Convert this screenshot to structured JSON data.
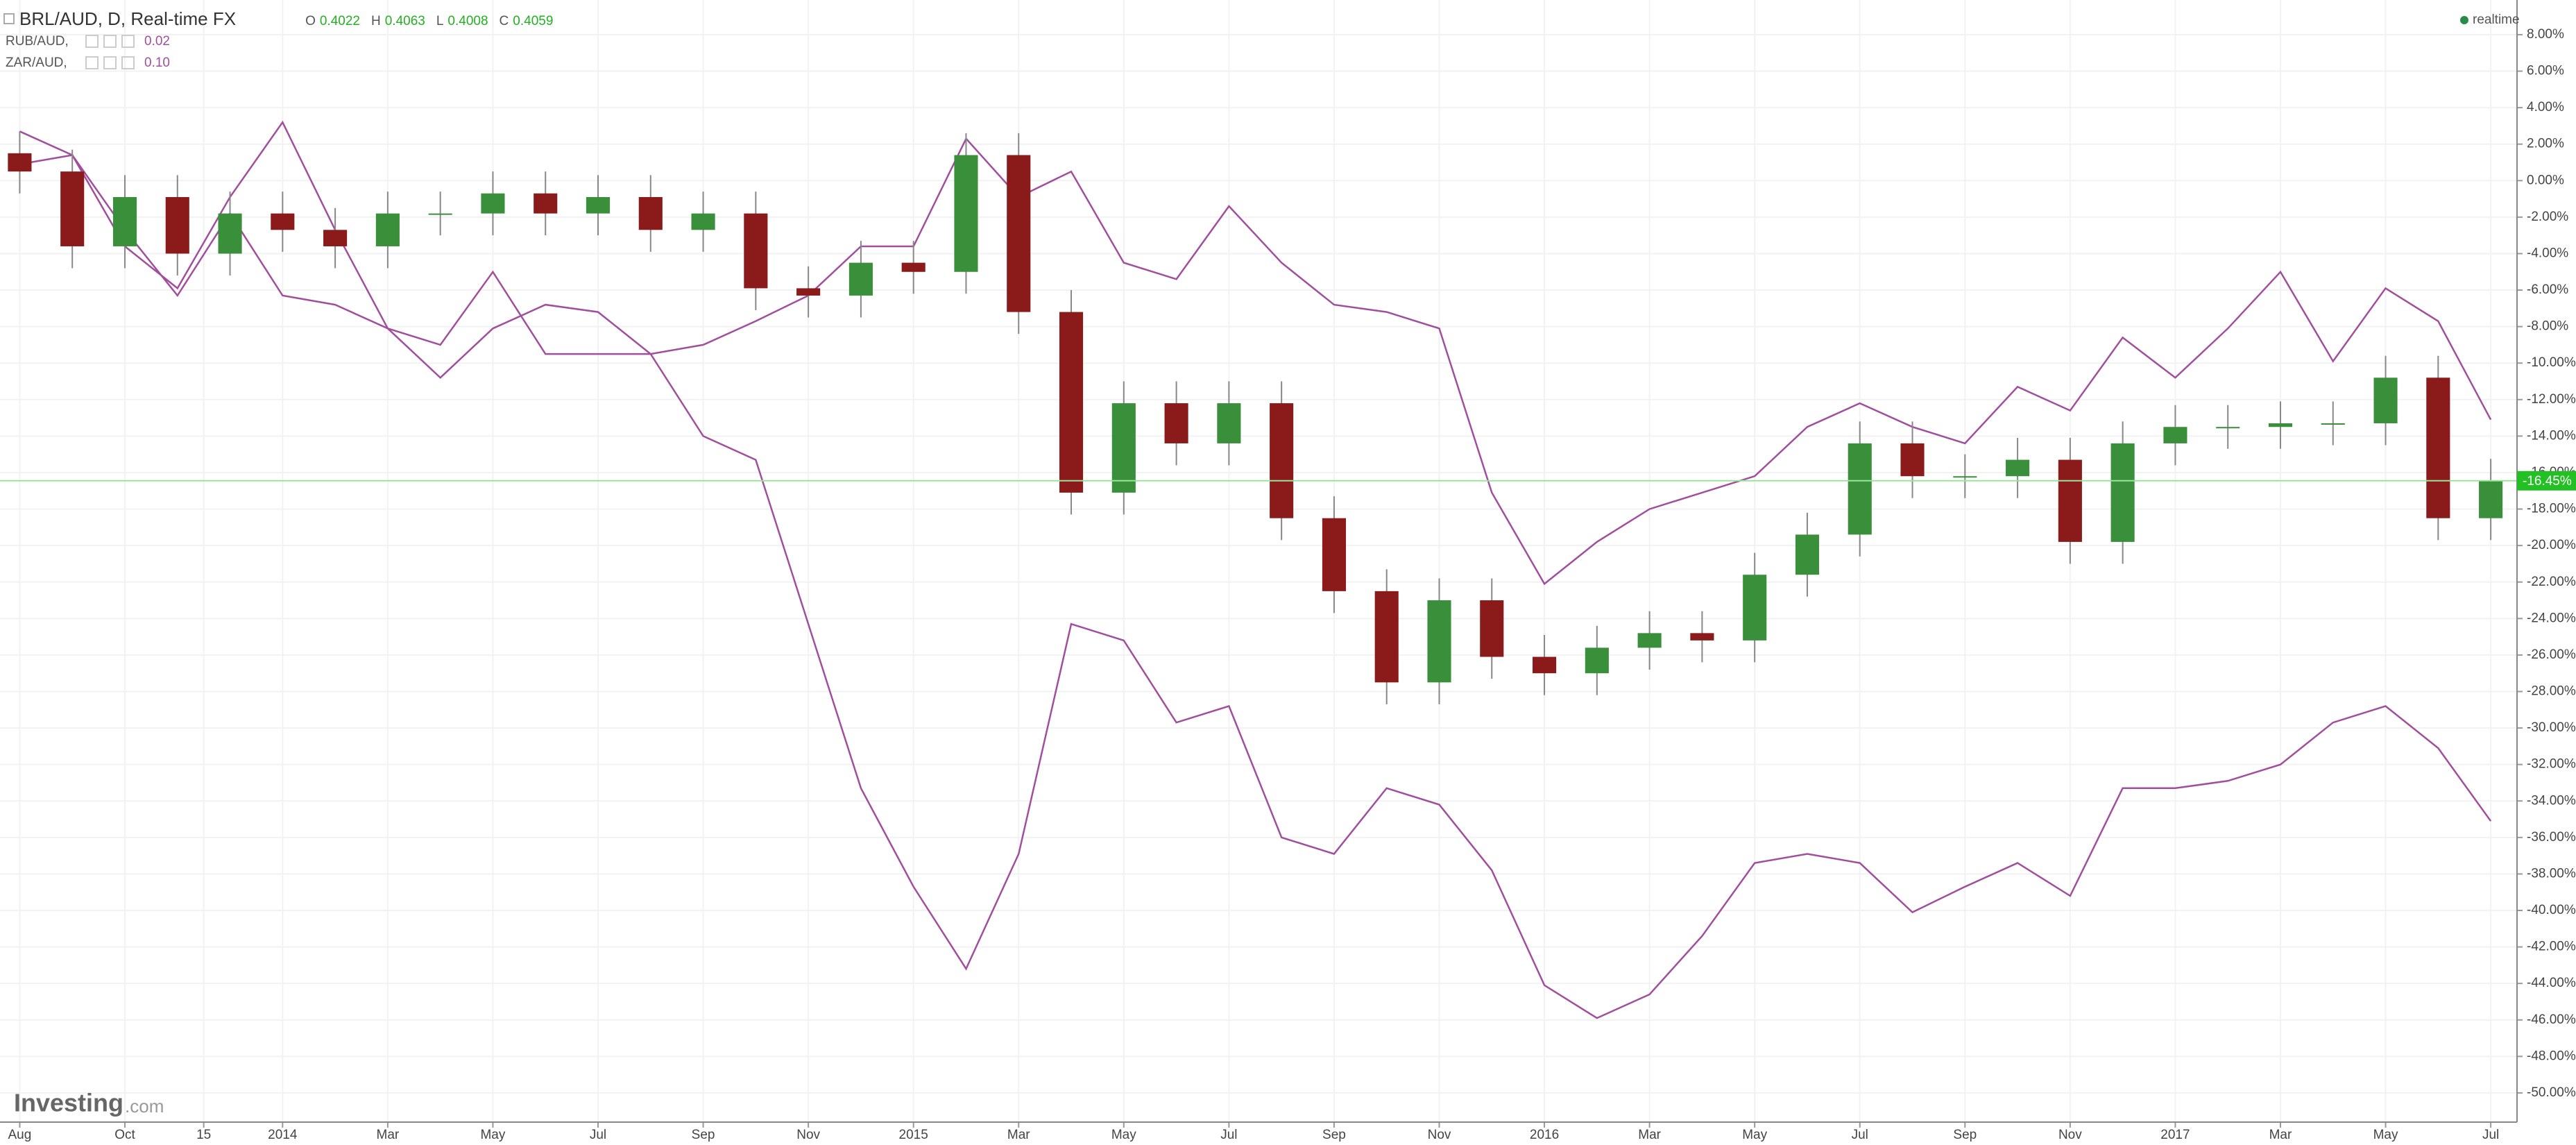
{
  "chart_data": {
    "type": "candlestick",
    "title": "BRL/AUD, D, Real-time FX",
    "ohlc_legend": [
      {
        "label": "O",
        "value": 0.4022
      },
      {
        "label": "H",
        "value": 0.4063
      },
      {
        "label": "L",
        "value": 0.4008
      },
      {
        "label": "C",
        "value": 0.4059
      }
    ],
    "status": "realtime",
    "watermark": "Investing",
    "watermark_suffix": ".com",
    "up_color": "#3a8f3a",
    "down_color": "#8b1a1a",
    "wick_color": "#888888",
    "x": [
      0,
      1,
      2,
      3,
      4,
      5,
      6,
      7,
      8,
      9,
      10,
      11,
      12,
      13,
      14,
      15,
      16,
      17,
      18,
      19,
      20,
      21,
      22,
      23,
      24,
      25,
      26,
      27,
      28,
      29,
      30,
      31,
      32,
      33,
      34,
      35,
      36,
      37,
      38,
      39,
      40,
      41,
      42,
      43,
      44,
      45,
      46,
      47
    ],
    "open": [
      1.5,
      0.5,
      -3.6,
      -0.9,
      -4,
      -1.8,
      -2.7,
      -3.6,
      -1.8,
      -1.8,
      -0.7,
      -1.8,
      -0.9,
      -2.7,
      -1.8,
      -5.9,
      -6.3,
      -4.5,
      -5,
      1.4,
      -7.2,
      -17.1,
      -12.2,
      -14.4,
      -12.2,
      -18.5,
      -22.5,
      -27.5,
      -23,
      -26.1,
      -27,
      -25.6,
      -24.8,
      -25.2,
      -21.6,
      -19.4,
      -14.4,
      -16.2,
      -16.2,
      -15.3,
      -19.8,
      -14.4,
      -13.5,
      -13.5,
      -13.3,
      -13.3,
      -10.8,
      -18.5
    ],
    "high": [
      2.7,
      1.7,
      0.3,
      0.3,
      -0.6,
      -0.6,
      -1.5,
      -0.6,
      -0.6,
      0.5,
      0.5,
      0.3,
      0.3,
      -0.6,
      -0.6,
      -4.7,
      -3.3,
      -3.3,
      2.6,
      2.6,
      -6,
      -11,
      -11,
      -11,
      -11,
      -17.3,
      -21.3,
      -21.8,
      -21.8,
      -24.9,
      -24.4,
      -23.6,
      -23.6,
      -20.4,
      -18.2,
      -13.2,
      -13.2,
      -15,
      -14.1,
      -14.1,
      -13.2,
      -12.3,
      -12.3,
      -12.1,
      -12.1,
      -9.6,
      -9.6,
      -15.25
    ],
    "low": [
      -0.7,
      -4.8,
      -4.8,
      -5.2,
      -5.2,
      -3.9,
      -4.8,
      -4.8,
      -3,
      -3,
      -3,
      -3,
      -3.9,
      -3.9,
      -7.1,
      -7.5,
      -7.5,
      -6.2,
      -6.2,
      -8.4,
      -18.3,
      -18.3,
      -15.6,
      -15.6,
      -19.7,
      -23.7,
      -28.7,
      -28.7,
      -27.3,
      -28.2,
      -28.2,
      -26.8,
      -26.4,
      -26.4,
      -22.8,
      -20.6,
      -17.4,
      -17.4,
      -17.4,
      -21,
      -21,
      -15.6,
      -14.7,
      -14.7,
      -14.5,
      -14.5,
      -19.7,
      -19.7
    ],
    "close": [
      0.5,
      -3.6,
      -0.9,
      -4,
      -1.8,
      -2.7,
      -3.6,
      -1.8,
      -1.8,
      -0.7,
      -1.8,
      -0.9,
      -2.7,
      -1.8,
      -5.9,
      -6.3,
      -4.5,
      -5,
      1.4,
      -7.2,
      -17.1,
      -12.2,
      -14.4,
      -12.2,
      -18.5,
      -22.5,
      -27.5,
      -23,
      -26.1,
      -27,
      -25.6,
      -24.8,
      -25.2,
      -21.6,
      -19.4,
      -14.4,
      -16.2,
      -16.2,
      -15.3,
      -19.8,
      -14.4,
      -13.5,
      -13.5,
      -13.3,
      -13.3,
      -10.8,
      -18.5,
      -16.45
    ],
    "last_value": {
      "value": -16.45,
      "label": "-16.45%"
    },
    "last_color": "#22c022",
    "series": [
      {
        "name": "RUB/AUD,",
        "legend_value": "0.02",
        "color": "#a14f9d",
        "values": [
          2.7,
          1.4,
          -3.6,
          -5.9,
          -0.9,
          3.2,
          -2.7,
          -8.1,
          -10.8,
          -8.1,
          -6.8,
          -7.2,
          -9.5,
          -14,
          -15.3,
          -24.3,
          -33.3,
          -38.7,
          -43.2,
          -36.9,
          -24.3,
          -25.2,
          -29.7,
          -28.8,
          -36,
          -36.9,
          -33.3,
          -34.2,
          -37.8,
          -44.1,
          -45.9,
          -44.6,
          -41.4,
          -37.4,
          -36.9,
          -37.4,
          -40.1,
          -38.7,
          -37.4,
          -39.2,
          -33.3,
          -33.3,
          -32.9,
          -32,
          -29.7,
          -28.8,
          -31.1,
          -35.1
        ]
      },
      {
        "name": "ZAR/AUD,",
        "legend_value": "0.10",
        "color": "#a14f9d",
        "values": [
          0.9,
          1.4,
          -2.7,
          -6.3,
          -1.8,
          -6.3,
          -6.8,
          -8.1,
          -9,
          -5,
          -9.5,
          -9.5,
          -9.5,
          -9,
          -7.7,
          -6.3,
          -3.6,
          -3.6,
          2.3,
          -0.9,
          0.5,
          -4.5,
          -5.4,
          -1.4,
          -4.5,
          -6.8,
          -7.2,
          -8.1,
          -17.1,
          -22.1,
          -19.8,
          -18,
          -17.1,
          -16.2,
          -13.5,
          -12.2,
          -13.5,
          -14.4,
          -11.3,
          -12.6,
          -8.6,
          -10.8,
          -8.1,
          -5,
          -9.9,
          -5.9,
          -7.7,
          -13.1
        ]
      }
    ],
    "xlim": [
      -0.375,
      47.5
    ],
    "xticks": [
      {
        "value": 0,
        "label": "Aug"
      },
      {
        "value": 2,
        "label": "Oct"
      },
      {
        "value": 3.5,
        "label": "15"
      },
      {
        "value": 5,
        "label": "2014"
      },
      {
        "value": 7,
        "label": "Mar"
      },
      {
        "value": 9,
        "label": "May"
      },
      {
        "value": 11,
        "label": "Jul"
      },
      {
        "value": 13,
        "label": "Sep"
      },
      {
        "value": 15,
        "label": "Nov"
      },
      {
        "value": 17,
        "label": "2015"
      },
      {
        "value": 19,
        "label": "Mar"
      },
      {
        "value": 21,
        "label": "May"
      },
      {
        "value": 23,
        "label": "Jul"
      },
      {
        "value": 25,
        "label": "Sep"
      },
      {
        "value": 27,
        "label": "Nov"
      },
      {
        "value": 29,
        "label": "2016"
      },
      {
        "value": 31,
        "label": "Mar"
      },
      {
        "value": 33,
        "label": "May"
      },
      {
        "value": 35,
        "label": "Jul"
      },
      {
        "value": 37,
        "label": "Sep"
      },
      {
        "value": 39,
        "label": "Nov"
      },
      {
        "value": 41,
        "label": "2017"
      },
      {
        "value": 43,
        "label": "Mar"
      },
      {
        "value": 45,
        "label": "May"
      },
      {
        "value": 47,
        "label": "Jul"
      }
    ],
    "ylim": [
      -51.6,
      9.9
    ],
    "yticks": [
      {
        "value": 8,
        "label": "8.00%"
      },
      {
        "value": 6,
        "label": "6.00%"
      },
      {
        "value": 4,
        "label": "4.00%"
      },
      {
        "value": 2,
        "label": "2.00%"
      },
      {
        "value": 0,
        "label": "0.00%"
      },
      {
        "value": -2,
        "label": "-2.00%"
      },
      {
        "value": -4,
        "label": "-4.00%"
      },
      {
        "value": -6,
        "label": "-6.00%"
      },
      {
        "value": -8,
        "label": "-8.00%"
      },
      {
        "value": -10,
        "label": "-10.00%"
      },
      {
        "value": -12,
        "label": "-12.00%"
      },
      {
        "value": -14,
        "label": "-14.00%"
      },
      {
        "value": -16,
        "label": "-16.00%"
      },
      {
        "value": -18,
        "label": "-18.00%"
      },
      {
        "value": -20,
        "label": "-20.00%"
      },
      {
        "value": -22,
        "label": "-22.00%"
      },
      {
        "value": -24,
        "label": "-24.00%"
      },
      {
        "value": -26,
        "label": "-26.00%"
      },
      {
        "value": -28,
        "label": "-28.00%"
      },
      {
        "value": -30,
        "label": "-30.00%"
      },
      {
        "value": -32,
        "label": "-32.00%"
      },
      {
        "value": -34,
        "label": "-34.00%"
      },
      {
        "value": -36,
        "label": "-36.00%"
      },
      {
        "value": -38,
        "label": "-38.00%"
      },
      {
        "value": -40,
        "label": "-40.00%"
      },
      {
        "value": -42,
        "label": "-42.00%"
      },
      {
        "value": -44,
        "label": "-44.00%"
      },
      {
        "value": -46,
        "label": "-46.00%"
      },
      {
        "value": -48,
        "label": "-48.00%"
      },
      {
        "value": -50,
        "label": "-50.00%"
      }
    ],
    "grid": true
  }
}
